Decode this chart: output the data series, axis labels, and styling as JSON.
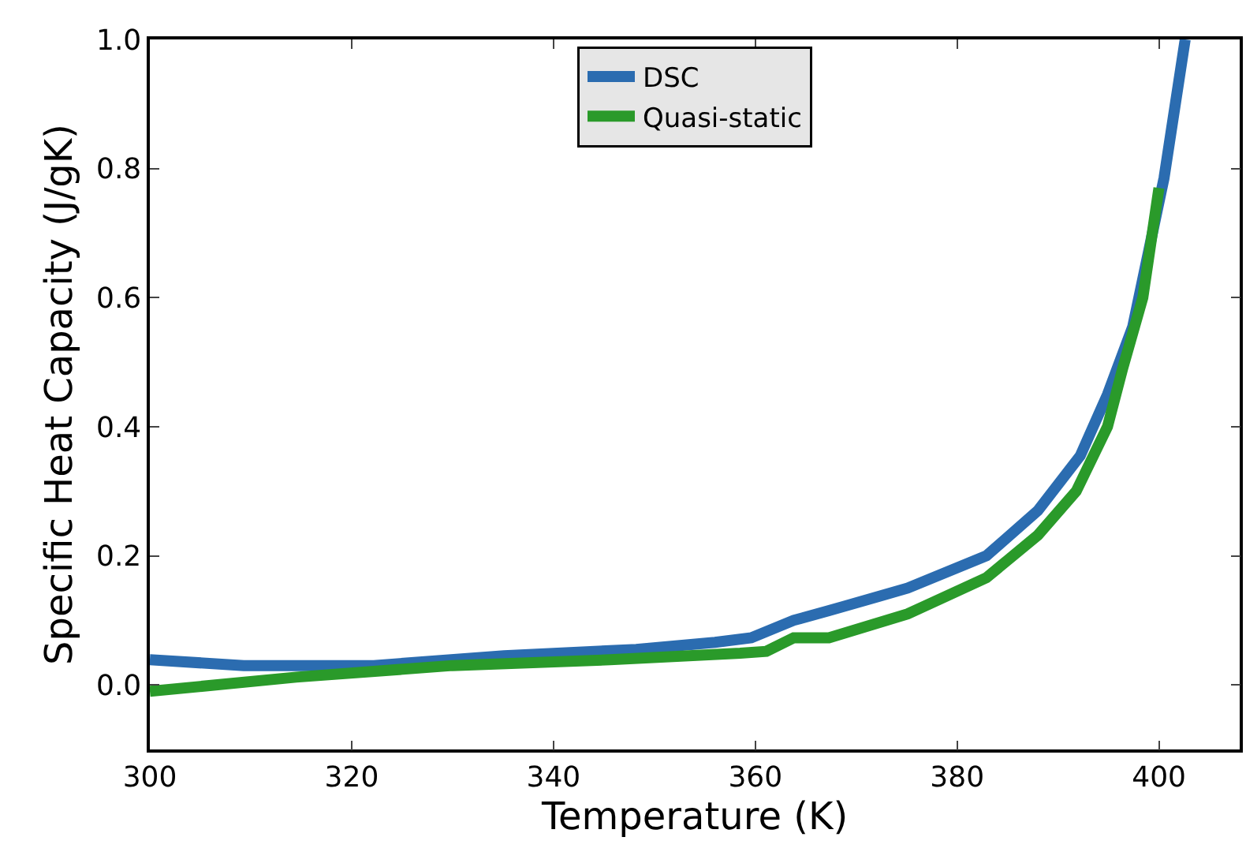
{
  "chart_data": {
    "type": "line",
    "xlabel": "Temperature (K)",
    "ylabel": "Specific Heat Capacity (J/gK)",
    "xlim": [
      300,
      408
    ],
    "ylim": [
      -0.1,
      1.0
    ],
    "xticks": [
      300,
      320,
      340,
      360,
      380,
      400
    ],
    "yticks": [
      {
        "value": 0,
        "label": "0.0"
      },
      0.2,
      0.4,
      0.6,
      0.8,
      {
        "value": 1,
        "label": "1.0"
      }
    ],
    "legend": "top",
    "marker": "none",
    "line_style": "solid",
    "series": [
      {
        "name": "DSC",
        "color": "#2b6cb0",
        "x": [
          300,
          309.3,
          322.2,
          335.1,
          348.2,
          356,
          359.6,
          363.8,
          367.3,
          375.1,
          382.9,
          388,
          392.2,
          394.9,
          397.4,
          400.5,
          402.6
        ],
        "values": [
          0.039,
          0.03,
          0.03,
          0.045,
          0.055,
          0.066,
          0.073,
          0.1,
          0.115,
          0.15,
          0.2,
          0.27,
          0.355,
          0.45,
          0.555,
          0.785,
          1.0
        ]
      },
      {
        "name": "Quasi-static",
        "color": "#2a9a2a",
        "x": [
          300,
          314.5,
          330,
          345.6,
          358.5,
          361.1,
          363.8,
          367.3,
          375.1,
          382.9,
          388,
          391.8,
          394.9,
          396.4,
          398.4,
          400
        ],
        "values": [
          -0.01,
          0.012,
          0.03,
          0.039,
          0.049,
          0.052,
          0.073,
          0.073,
          0.11,
          0.166,
          0.232,
          0.3,
          0.4,
          0.49,
          0.6,
          0.77
        ]
      }
    ]
  }
}
